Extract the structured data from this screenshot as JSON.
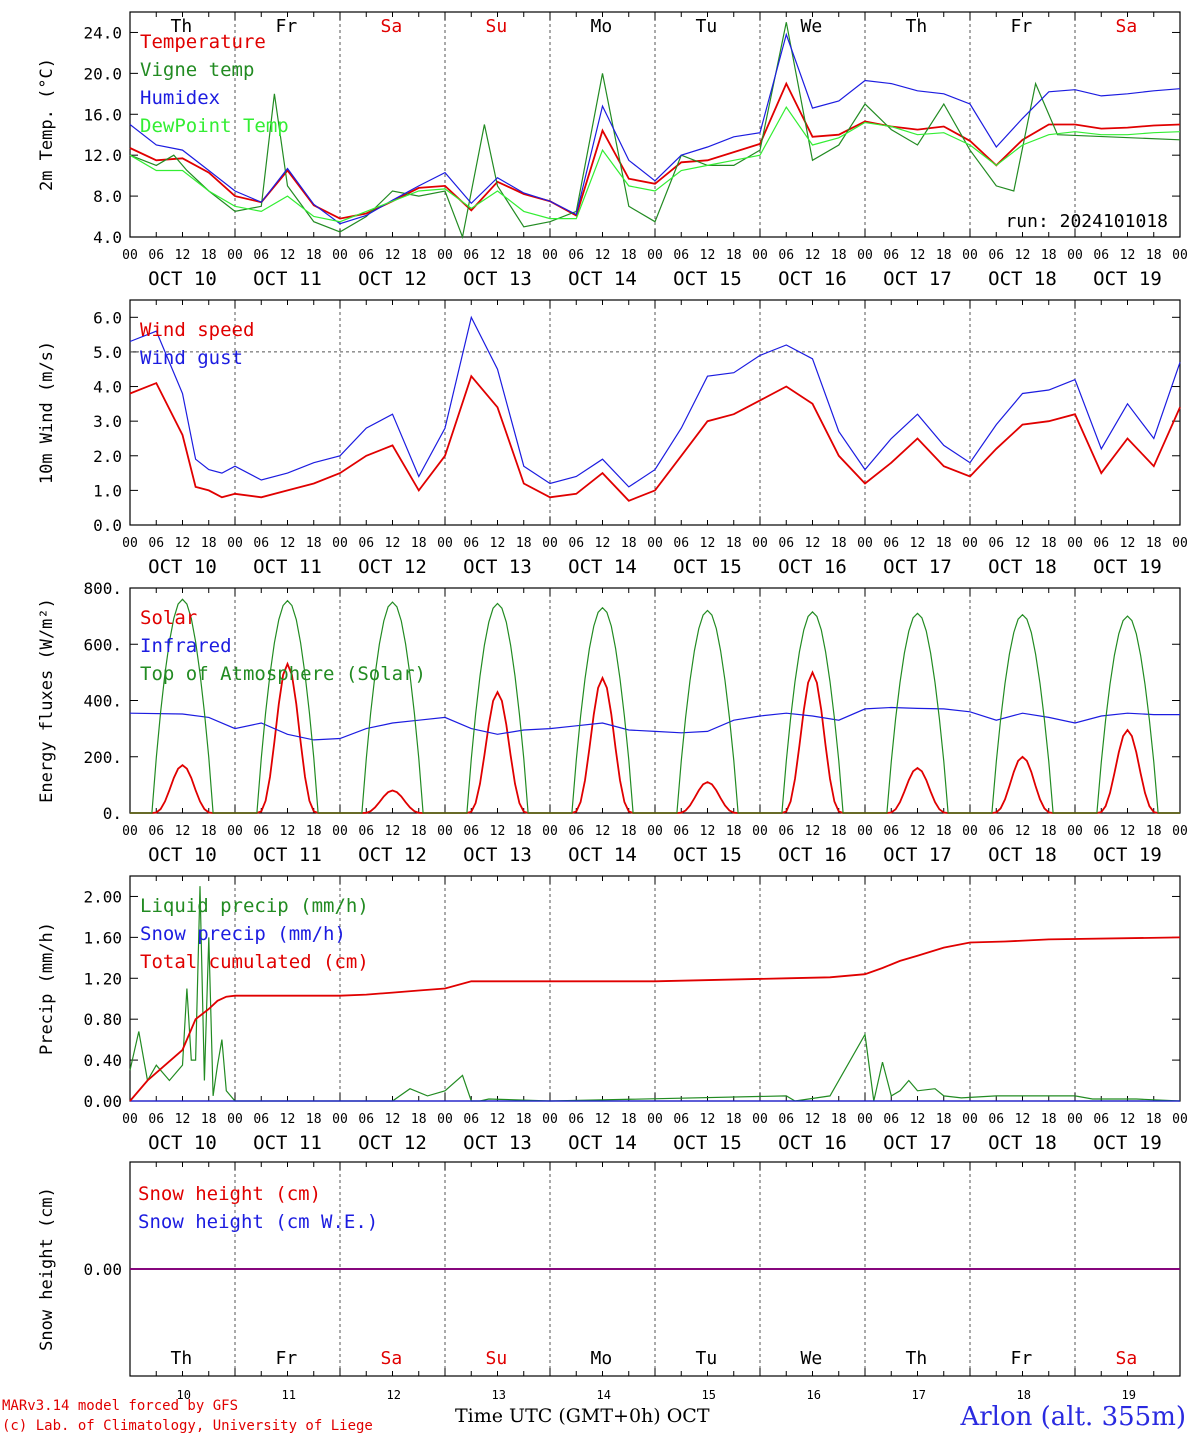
{
  "colors": {
    "red": "#e00000",
    "green": "#228b22",
    "blue": "#1c1ce0",
    "lightgreen": "#33ee33",
    "purple": "#800080",
    "weekend": "#e00000",
    "weekday": "#000000"
  },
  "days": [
    {
      "abbr": "Th",
      "date": "OCT 10",
      "num": "10",
      "weekend": false
    },
    {
      "abbr": "Fr",
      "date": "OCT 11",
      "num": "11",
      "weekend": false
    },
    {
      "abbr": "Sa",
      "date": "OCT 12",
      "num": "12",
      "weekend": true
    },
    {
      "abbr": "Su",
      "date": "OCT 13",
      "num": "13",
      "weekend": true
    },
    {
      "abbr": "Mo",
      "date": "OCT 14",
      "num": "14",
      "weekend": false
    },
    {
      "abbr": "Tu",
      "date": "OCT 15",
      "num": "15",
      "weekend": false
    },
    {
      "abbr": "We",
      "date": "OCT 16",
      "num": "16",
      "weekend": false
    },
    {
      "abbr": "Th",
      "date": "OCT 17",
      "num": "17",
      "weekend": false
    },
    {
      "abbr": "Fr",
      "date": "OCT 18",
      "num": "18",
      "weekend": false
    },
    {
      "abbr": "Sa",
      "date": "OCT 19",
      "num": "19",
      "weekend": true
    }
  ],
  "hour_ticks": [
    "00",
    "06",
    "12",
    "18"
  ],
  "footer": {
    "model": "MARv3.14 model forced by GFS",
    "lab": "(c) Lab. of Climatology, University of Liege",
    "xlabel": "Time UTC (GMT+0h)",
    "month": "OCT",
    "station": "Arlon (alt. 355m)"
  },
  "chart_data": [
    {
      "type": "line",
      "ylabel": "2m Temp. (°C)",
      "ylim": [
        4,
        26
      ],
      "yticks": [
        4,
        8,
        12,
        16,
        20,
        24
      ],
      "ytick_labels": [
        "4.0",
        "8.0",
        "12.0",
        "16.0",
        "20.0",
        "24.0"
      ],
      "annotation": "run: 2024101018",
      "series": [
        {
          "name": "Temperature",
          "color": "red",
          "x": [
            0,
            6,
            12,
            18,
            24,
            30,
            36,
            42,
            48,
            54,
            60,
            66,
            72,
            78,
            84,
            90,
            96,
            102,
            108,
            114,
            120,
            126,
            132,
            138,
            144,
            150,
            156,
            162,
            168,
            174,
            180,
            186,
            192,
            198,
            204,
            210,
            216,
            222,
            228,
            234,
            240
          ],
          "y": [
            12.7,
            11.5,
            11.7,
            10.3,
            8.0,
            7.4,
            10.5,
            7.1,
            5.8,
            6.3,
            7.5,
            8.8,
            9.0,
            6.6,
            9.4,
            8.2,
            7.5,
            6.1,
            14.4,
            9.7,
            9.2,
            11.3,
            11.5,
            12.3,
            13.1,
            19.0,
            13.8,
            14.0,
            15.3,
            14.8,
            14.5,
            14.8,
            13.4,
            11.0,
            13.5,
            15.0,
            15.0,
            14.6,
            14.7,
            14.9,
            15.0
          ]
        },
        {
          "name": "Vigne temp",
          "color": "green",
          "x": [
            0,
            6,
            10,
            13,
            18,
            24,
            30,
            33,
            36,
            42,
            48,
            54,
            60,
            66,
            72,
            76,
            81,
            84,
            90,
            96,
            102,
            108,
            114,
            120,
            126,
            132,
            138,
            144,
            150,
            156,
            162,
            168,
            174,
            180,
            186,
            192,
            198,
            202,
            207,
            212,
            240
          ],
          "y": [
            12.0,
            11.0,
            12.0,
            10.5,
            8.5,
            6.5,
            7.0,
            18.0,
            9.0,
            5.5,
            4.5,
            6.0,
            8.5,
            8.0,
            8.5,
            4.0,
            15.0,
            9.0,
            5.0,
            5.5,
            6.5,
            20.0,
            7.0,
            5.5,
            12.0,
            11.0,
            11.0,
            12.5,
            25.0,
            11.5,
            13.0,
            17.0,
            14.5,
            13.0,
            17.0,
            12.5,
            9.0,
            8.5,
            19.0,
            14.0,
            13.5
          ]
        },
        {
          "name": "Humidex",
          "color": "blue",
          "x": [
            0,
            6,
            12,
            18,
            24,
            30,
            36,
            42,
            48,
            54,
            60,
            66,
            72,
            78,
            84,
            90,
            96,
            102,
            108,
            114,
            120,
            126,
            132,
            138,
            144,
            150,
            156,
            162,
            168,
            174,
            180,
            186,
            192,
            198,
            204,
            210,
            216,
            222,
            228,
            234,
            240
          ],
          "y": [
            15.0,
            13.0,
            12.5,
            10.5,
            8.5,
            7.4,
            10.7,
            7.2,
            5.3,
            6.1,
            7.6,
            9.0,
            10.3,
            7.3,
            9.8,
            8.3,
            7.5,
            6.2,
            16.8,
            11.5,
            9.5,
            12.0,
            12.8,
            13.8,
            14.2,
            23.8,
            16.6,
            17.3,
            19.3,
            19.0,
            18.3,
            18.0,
            17.0,
            12.8,
            15.6,
            18.2,
            18.4,
            17.8,
            18.0,
            18.3,
            18.5
          ]
        },
        {
          "name": "DewPoint Temp",
          "color": "lightgreen",
          "x": [
            0,
            6,
            12,
            18,
            24,
            30,
            36,
            42,
            48,
            54,
            60,
            66,
            72,
            78,
            84,
            90,
            96,
            102,
            108,
            114,
            120,
            126,
            132,
            138,
            144,
            150,
            156,
            162,
            168,
            174,
            180,
            186,
            192,
            198,
            204,
            210,
            216,
            222,
            228,
            234,
            240
          ],
          "y": [
            12.0,
            10.5,
            10.5,
            8.5,
            7.0,
            6.5,
            8.0,
            6.0,
            5.5,
            6.5,
            7.5,
            8.5,
            8.7,
            6.8,
            8.5,
            6.5,
            5.8,
            5.8,
            12.5,
            9.0,
            8.5,
            10.5,
            11.0,
            11.5,
            12.0,
            16.7,
            13.0,
            13.7,
            15.2,
            14.8,
            14.0,
            14.2,
            13.0,
            11.0,
            13.0,
            14.0,
            14.3,
            14.0,
            14.0,
            14.2,
            14.3
          ]
        }
      ]
    },
    {
      "type": "line",
      "ylabel": "10m Wind (m/s)",
      "ylim": [
        0,
        6.5
      ],
      "yticks": [
        0,
        1,
        2,
        3,
        4,
        5,
        6
      ],
      "ytick_labels": [
        "0.0",
        "1.0",
        "2.0",
        "3.0",
        "4.0",
        "5.0",
        "6.0"
      ],
      "reference_line": 5.0,
      "series": [
        {
          "name": "Wind speed",
          "color": "red",
          "x": [
            0,
            6,
            12,
            15,
            18,
            21,
            24,
            30,
            36,
            42,
            48,
            54,
            60,
            66,
            72,
            78,
            84,
            90,
            96,
            102,
            108,
            114,
            120,
            126,
            132,
            138,
            144,
            150,
            156,
            162,
            168,
            174,
            180,
            186,
            192,
            198,
            204,
            210,
            216,
            222,
            228,
            234,
            240
          ],
          "y": [
            3.8,
            4.1,
            2.6,
            1.1,
            1.0,
            0.8,
            0.9,
            0.8,
            1.0,
            1.2,
            1.5,
            2.0,
            2.3,
            1.0,
            2.0,
            4.3,
            3.4,
            1.2,
            0.8,
            0.9,
            1.5,
            0.7,
            1.0,
            2.0,
            3.0,
            3.2,
            3.6,
            4.0,
            3.5,
            2.0,
            1.2,
            1.8,
            2.5,
            1.7,
            1.4,
            2.2,
            2.9,
            3.0,
            3.2,
            1.5,
            2.5,
            1.7,
            3.4
          ]
        },
        {
          "name": "Wind gust",
          "color": "blue",
          "x": [
            0,
            6,
            12,
            15,
            18,
            21,
            24,
            30,
            36,
            42,
            48,
            54,
            60,
            66,
            72,
            78,
            84,
            90,
            96,
            102,
            108,
            114,
            120,
            126,
            132,
            138,
            144,
            150,
            156,
            162,
            168,
            174,
            180,
            186,
            192,
            198,
            204,
            210,
            216,
            222,
            228,
            234,
            240
          ],
          "y": [
            5.3,
            5.6,
            3.8,
            1.9,
            1.6,
            1.5,
            1.7,
            1.3,
            1.5,
            1.8,
            2.0,
            2.8,
            3.2,
            1.4,
            2.8,
            6.0,
            4.5,
            1.7,
            1.2,
            1.4,
            1.9,
            1.1,
            1.6,
            2.8,
            4.3,
            4.4,
            4.9,
            5.2,
            4.8,
            2.7,
            1.6,
            2.5,
            3.2,
            2.3,
            1.8,
            2.9,
            3.8,
            3.9,
            4.2,
            2.2,
            3.5,
            2.5,
            4.7
          ]
        }
      ]
    },
    {
      "type": "line",
      "ylabel": "Energy fluxes (W/m²)",
      "ylim": [
        0,
        800
      ],
      "yticks": [
        0,
        200,
        400,
        600,
        800
      ],
      "ytick_labels": [
        "0.",
        "200.",
        "400.",
        "600.",
        "800."
      ],
      "series": [
        {
          "name": "Solar",
          "color": "red",
          "daily_peaks": [
            170,
            530,
            80,
            430,
            480,
            110,
            500,
            160,
            200,
            295
          ]
        },
        {
          "name": "Infrared",
          "color": "blue",
          "x": [
            0,
            12,
            18,
            24,
            30,
            36,
            42,
            48,
            54,
            60,
            66,
            72,
            78,
            84,
            90,
            96,
            102,
            108,
            114,
            120,
            126,
            132,
            138,
            144,
            150,
            156,
            162,
            168,
            174,
            180,
            186,
            192,
            198,
            204,
            210,
            216,
            222,
            228,
            234,
            240
          ],
          "y": [
            355,
            352,
            340,
            300,
            320,
            280,
            260,
            265,
            300,
            320,
            330,
            340,
            300,
            280,
            295,
            300,
            310,
            320,
            295,
            290,
            285,
            290,
            330,
            345,
            355,
            345,
            330,
            370,
            375,
            372,
            370,
            360,
            330,
            355,
            340,
            320,
            345,
            355,
            350,
            350
          ]
        },
        {
          "name": "Top of Atmosphere (Solar)",
          "color": "green",
          "daily_peaks": [
            760,
            755,
            750,
            745,
            730,
            720,
            715,
            710,
            705,
            700
          ]
        }
      ]
    },
    {
      "type": "line",
      "ylabel": "Precip (mm/h)",
      "ylim": [
        0,
        2.2
      ],
      "yticks": [
        0,
        0.4,
        0.8,
        1.2,
        1.6,
        2.0
      ],
      "ytick_labels": [
        "0.00",
        "0.40",
        "0.80",
        "1.20",
        "1.60",
        "2.00"
      ],
      "series": [
        {
          "name": "Liquid precip (mm/h)",
          "color": "green",
          "x": [
            0,
            2,
            4,
            6,
            9,
            12,
            13,
            14,
            15,
            16,
            17,
            18,
            19,
            20,
            21,
            22,
            24,
            26,
            60,
            64,
            68,
            72,
            76,
            78,
            80,
            82,
            96,
            150,
            152,
            160,
            168,
            170,
            172,
            174,
            176,
            178,
            180,
            184,
            186,
            190,
            198,
            216,
            220,
            230,
            240
          ],
          "y": [
            0.3,
            0.68,
            0.2,
            0.35,
            0.2,
            0.35,
            1.1,
            0.4,
            0.4,
            2.1,
            0.2,
            1.6,
            0.05,
            0.35,
            0.6,
            0.1,
            0.0,
            0.0,
            0.0,
            0.12,
            0.05,
            0.1,
            0.25,
            0.0,
            0.0,
            0.02,
            0.0,
            0.05,
            0.0,
            0.05,
            0.65,
            0.0,
            0.38,
            0.05,
            0.1,
            0.2,
            0.1,
            0.12,
            0.05,
            0.03,
            0.05,
            0.05,
            0.02,
            0.02,
            0.0
          ]
        },
        {
          "name": "Snow precip (mm/h)",
          "color": "blue",
          "x": [
            0,
            240
          ],
          "y": [
            0,
            0
          ]
        },
        {
          "name": "Total cumulated (cm)",
          "color": "red",
          "x": [
            0,
            4,
            8,
            12,
            15,
            18,
            20,
            22,
            24,
            48,
            54,
            60,
            66,
            72,
            78,
            84,
            90,
            120,
            150,
            160,
            168,
            172,
            176,
            180,
            186,
            192,
            200,
            210,
            240
          ],
          "y": [
            0.0,
            0.2,
            0.35,
            0.5,
            0.8,
            0.9,
            0.98,
            1.02,
            1.03,
            1.03,
            1.04,
            1.06,
            1.08,
            1.1,
            1.17,
            1.17,
            1.17,
            1.17,
            1.2,
            1.21,
            1.24,
            1.3,
            1.37,
            1.42,
            1.5,
            1.55,
            1.56,
            1.58,
            1.6
          ]
        }
      ]
    },
    {
      "type": "line",
      "ylabel": "Snow height (cm)",
      "ylim": [
        -1,
        1
      ],
      "yticks": [
        0
      ],
      "ytick_labels": [
        "0.00"
      ],
      "series": [
        {
          "name": "Snow height (cm)",
          "color": "red",
          "x": [
            0,
            240
          ],
          "y": [
            0,
            0
          ]
        },
        {
          "name": "Snow height (cm W.E.)",
          "color": "blue",
          "x": [
            0,
            240
          ],
          "y": [
            0,
            0
          ]
        }
      ]
    }
  ]
}
